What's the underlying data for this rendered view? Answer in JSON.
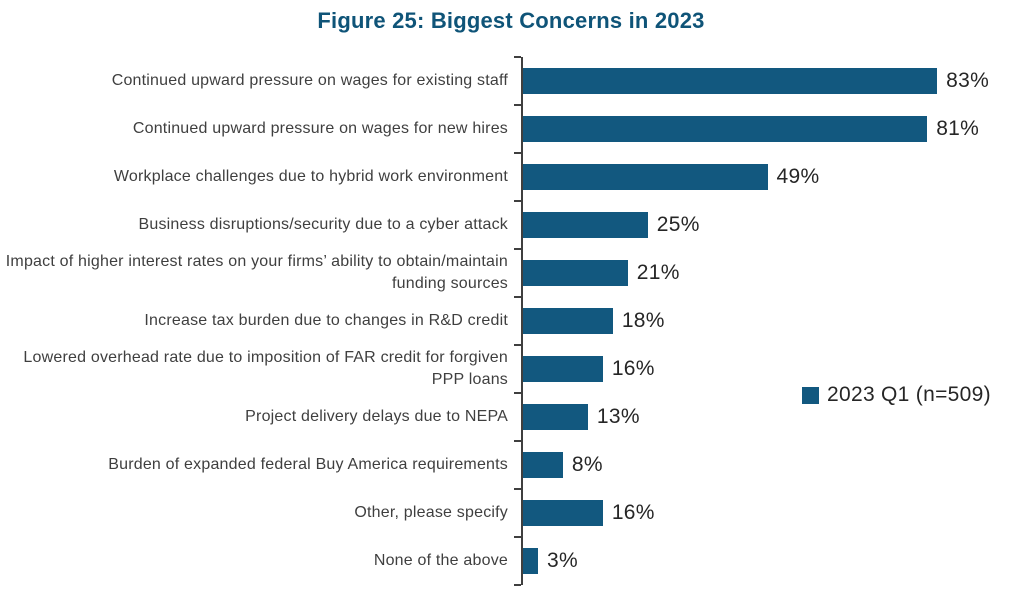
{
  "chart_data": {
    "type": "bar",
    "orientation": "horizontal",
    "title": "Figure 25: Biggest Concerns in 2023",
    "categories": [
      "Continued upward pressure on wages for existing staff",
      "Continued upward pressure on wages for new hires",
      "Workplace challenges due to hybrid work environment",
      "Business disruptions/security due to a cyber attack",
      "Impact of higher interest rates on your firms’ ability to obtain/maintain funding sources",
      "Increase tax burden due to changes in R&D credit",
      "Lowered overhead rate due to imposition of FAR credit for forgiven PPP loans",
      "Project delivery delays due to NEPA",
      "Burden of expanded federal Buy America requirements",
      "Other, please specify",
      "None of the above"
    ],
    "values": [
      83,
      81,
      49,
      25,
      21,
      18,
      16,
      13,
      8,
      16,
      3
    ],
    "value_labels": [
      "83%",
      "81%",
      "49%",
      "25%",
      "21%",
      "18%",
      "16%",
      "13%",
      "8%",
      "16%",
      "3%"
    ],
    "legend": {
      "label": "2023 Q1 (n=509)",
      "position": "right"
    },
    "xlim": [
      0,
      100
    ],
    "grid": false,
    "value_format": "percent",
    "colors": {
      "bar": "#12587F",
      "title": "#0F5478",
      "axis": "#3F3F3F",
      "category_text": "#3F3F3F",
      "value_text": "#262626"
    }
  }
}
